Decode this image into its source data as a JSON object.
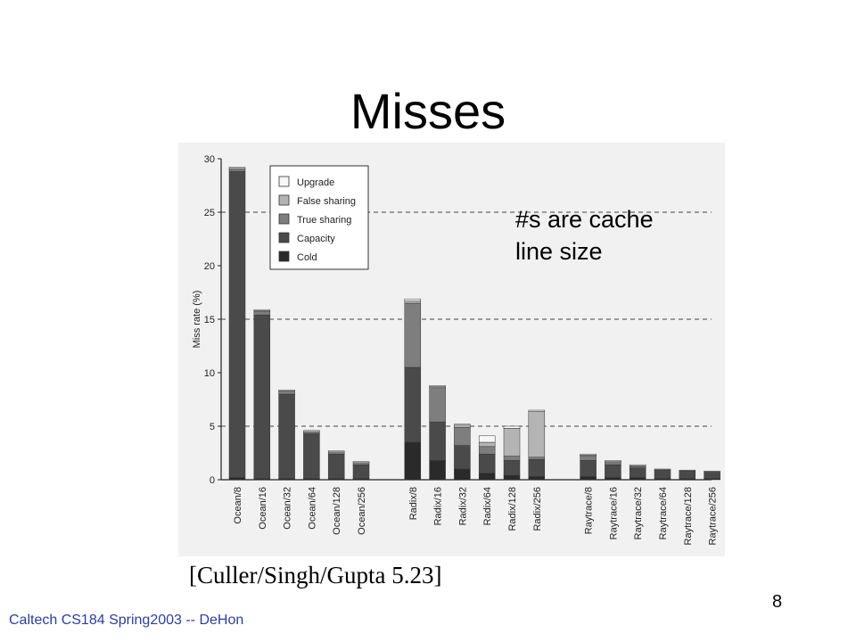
{
  "slide": {
    "title": "Misses",
    "annotation_line1": "#s are cache",
    "annotation_line2": "line size",
    "citation": "[Culler/Singh/Gupta 5.23]",
    "footer": "Caltech CS184 Spring2003 -- DeHon",
    "page_number": "8"
  },
  "chart_data": {
    "type": "bar",
    "stacked": true,
    "ylabel": "Miss rate (%)",
    "ylim": [
      0,
      30
    ],
    "yticks": [
      0,
      5,
      10,
      15,
      20,
      25,
      30
    ],
    "grid": "dashed horizontal lines at 5, 15, 25",
    "legend_placement": "top-left",
    "categories": [
      "Ocean/8",
      "Ocean/16",
      "Ocean/32",
      "Ocean/64",
      "Ocean/128",
      "Ocean/256",
      "Radix/8",
      "Radix/16",
      "Radix/32",
      "Radix/64",
      "Radix/128",
      "Radix/256",
      "Raytrace/8",
      "Raytrace/16",
      "Raytrace/32",
      "Raytrace/64",
      "Raytrace/128",
      "Raytrace/256"
    ],
    "groups": [
      6,
      6,
      6
    ],
    "series": [
      {
        "name": "Cold",
        "color": "#2a2a2a",
        "values": [
          0.2,
          0.1,
          0.1,
          0.1,
          0.1,
          0.1,
          3.5,
          1.8,
          1.0,
          0.6,
          0.4,
          0.3,
          0.3,
          0.2,
          0.2,
          0.1,
          0.1,
          0.1
        ]
      },
      {
        "name": "Capacity",
        "color": "#4a4a4a",
        "values": [
          28.6,
          15.3,
          7.9,
          4.2,
          2.3,
          1.3,
          7.0,
          3.6,
          2.2,
          1.8,
          1.4,
          1.6,
          1.5,
          1.2,
          0.9,
          0.8,
          0.7,
          0.6
        ]
      },
      {
        "name": "True sharing",
        "color": "#7e7e7e",
        "values": [
          0.2,
          0.3,
          0.3,
          0.2,
          0.2,
          0.2,
          6.0,
          3.2,
          1.7,
          0.7,
          0.4,
          0.2,
          0.4,
          0.2,
          0.1,
          0.1,
          0.1,
          0.1
        ]
      },
      {
        "name": "False sharing",
        "color": "#b4b4b4",
        "values": [
          0.1,
          0.1,
          0.0,
          0.0,
          0.0,
          0.0,
          0.2,
          0.1,
          0.2,
          0.4,
          2.6,
          4.3,
          0.1,
          0.1,
          0.1,
          0.0,
          0.0,
          0.0
        ]
      },
      {
        "name": "Upgrade",
        "color": "#f7f7f7",
        "values": [
          0.1,
          0.1,
          0.1,
          0.1,
          0.1,
          0.1,
          0.2,
          0.1,
          0.1,
          0.6,
          0.2,
          0.1,
          0.1,
          0.1,
          0.1,
          0.0,
          0.0,
          0.0
        ]
      }
    ],
    "legend_order": [
      "Upgrade",
      "False sharing",
      "True sharing",
      "Capacity",
      "Cold"
    ]
  }
}
